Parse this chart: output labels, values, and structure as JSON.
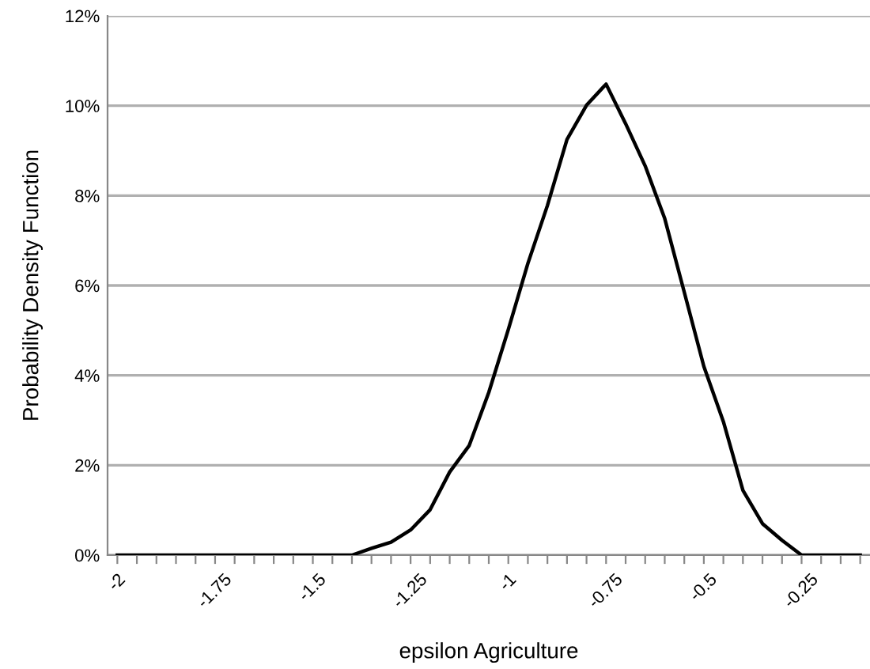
{
  "chart_data": {
    "type": "line",
    "xlabel": "epsilon Agriculture",
    "ylabel": "Probability Density Function",
    "categories": [
      "-2",
      null,
      null,
      null,
      null,
      "-1.75",
      null,
      null,
      null,
      null,
      "-1.5",
      null,
      null,
      null,
      null,
      "-1.25",
      null,
      null,
      null,
      null,
      "-1",
      null,
      null,
      null,
      null,
      "-0.75",
      null,
      null,
      null,
      null,
      "-0.5",
      null,
      null,
      null,
      null,
      "-0.25",
      null,
      null,
      null
    ],
    "series": [
      {
        "color": "#000000",
        "values": [
          0,
          0,
          0,
          0,
          0,
          0,
          0,
          0,
          0,
          0,
          0,
          0,
          0,
          0.15,
          0.29,
          0.56,
          1.01,
          1.85,
          2.44,
          3.62,
          5.02,
          6.49,
          7.78,
          9.25,
          10.01,
          10.48,
          9.6,
          8.66,
          7.49,
          5.85,
          4.2,
          2.97,
          1.44,
          0.7,
          0.33,
          0,
          0,
          0,
          0
        ]
      }
    ],
    "ylim": [
      0,
      12
    ],
    "yticks": [
      {
        "value": 0,
        "label": "0%"
      },
      {
        "value": 2,
        "label": "2%"
      },
      {
        "value": 4,
        "label": "4%"
      },
      {
        "value": 6,
        "label": "6%"
      },
      {
        "value": 8,
        "label": "8%"
      },
      {
        "value": 10,
        "label": "10%"
      },
      {
        "value": 12,
        "label": "12%"
      }
    ],
    "grid": "y",
    "legend": false,
    "marker": "none",
    "line_style": "solid"
  }
}
